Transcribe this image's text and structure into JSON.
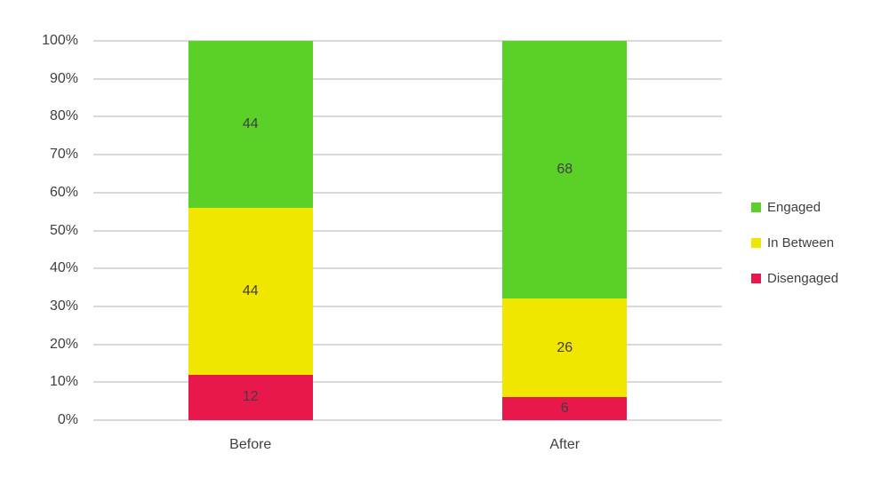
{
  "chart_data": {
    "type": "bar",
    "stacked": true,
    "categories": [
      "Before",
      "After"
    ],
    "series": [
      {
        "name": "Disengaged",
        "color": "#E8174C",
        "values": [
          12,
          6
        ]
      },
      {
        "name": "In Between",
        "color": "#F0E600",
        "values": [
          44,
          26
        ]
      },
      {
        "name": "Engaged",
        "color": "#5BD028",
        "values": [
          44,
          68
        ]
      }
    ],
    "y_tick_labels": [
      "0%",
      "10%",
      "20%",
      "30%",
      "40%",
      "50%",
      "60%",
      "70%",
      "80%",
      "90%",
      "100%"
    ],
    "value_axis": {
      "min": 0,
      "max": 100,
      "step": 10,
      "unit": "%"
    },
    "grid": true,
    "data_labels_visible": true,
    "legend": {
      "position": "right",
      "items": [
        "Engaged",
        "In Between",
        "Disengaged"
      ]
    }
  },
  "colors": {
    "background": "#FFFFFF",
    "gridline": "#D9D9D9",
    "axis_text": "#404040",
    "data_label_text": "#404040",
    "legend_text": "#404040"
  }
}
